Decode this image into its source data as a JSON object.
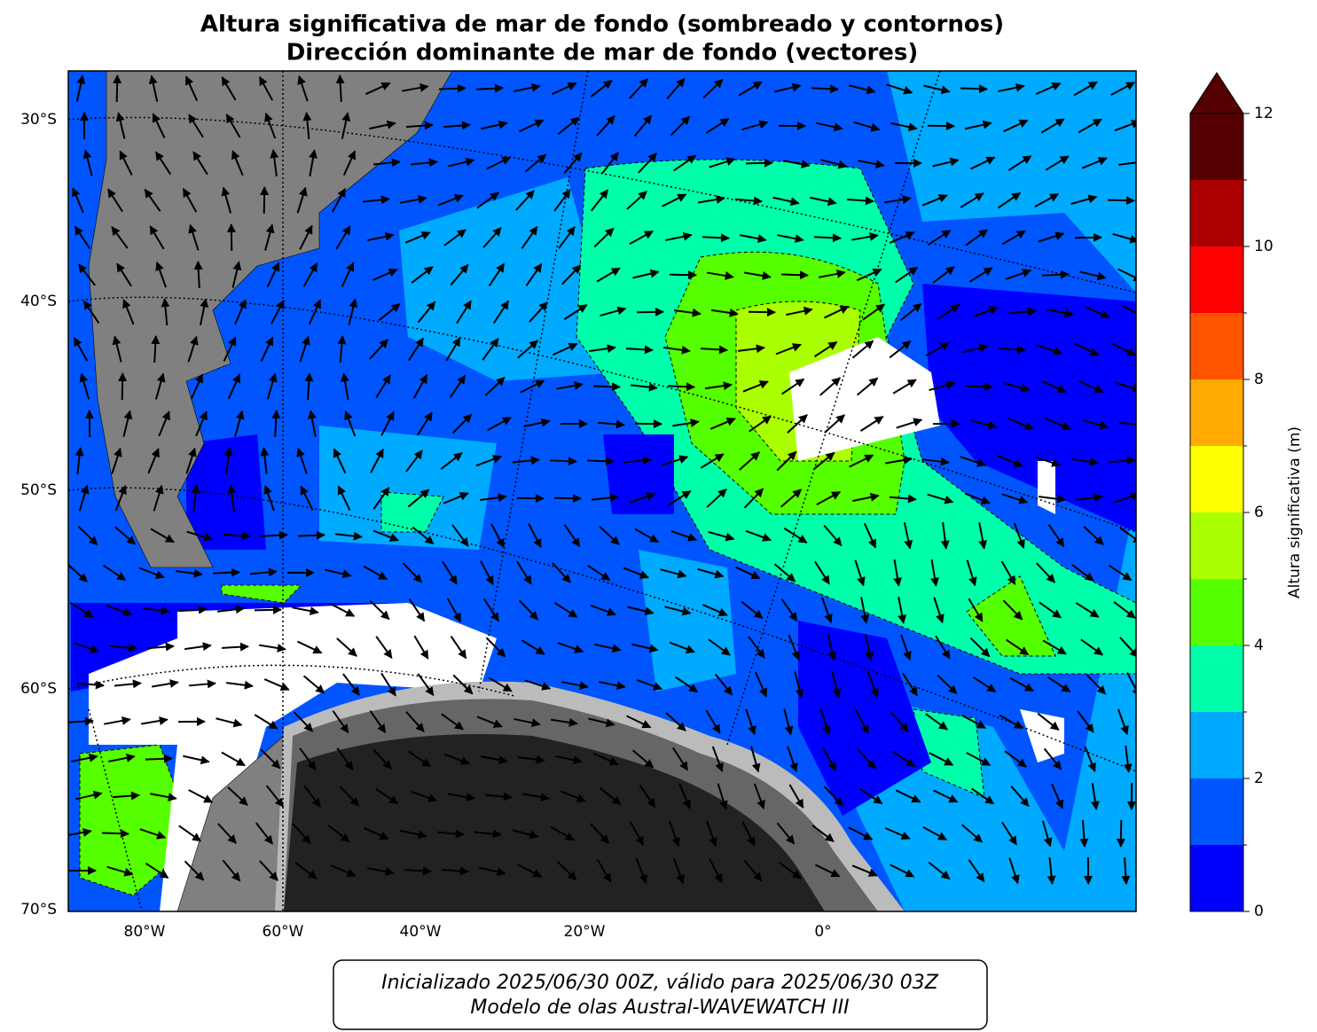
{
  "title": [
    "Altura significativa de mar de fondo (sombreado y contornos)",
    "Dirección dominante de mar de fondo (vectores)"
  ],
  "map": {
    "lat_labels": [
      "30°S",
      "40°S",
      "50°S",
      "60°S",
      "70°S"
    ],
    "lon_labels": [
      "80°W",
      "60°W",
      "40°W",
      "20°W",
      "0°"
    ]
  },
  "colorbar": {
    "label": "Altura significativa (m)",
    "levels": [
      0,
      1,
      2,
      3,
      4,
      5,
      6,
      7,
      8,
      9,
      10,
      11,
      12
    ],
    "colors": [
      "#0000ff",
      "#0055ff",
      "#00aaff",
      "#00ffaa",
      "#55ff00",
      "#aaff00",
      "#ffff00",
      "#ffaa00",
      "#ff5500",
      "#ff0000",
      "#aa0000",
      "#550000"
    ],
    "over_color": "#550000",
    "ticks": [
      0,
      2,
      4,
      6,
      8,
      10,
      12
    ]
  },
  "footer": [
    "Inicializado 2025/06/30 00Z, válido para 2025/06/30 03Z",
    "Modelo de olas Austral-WAVEWATCH III"
  ]
}
